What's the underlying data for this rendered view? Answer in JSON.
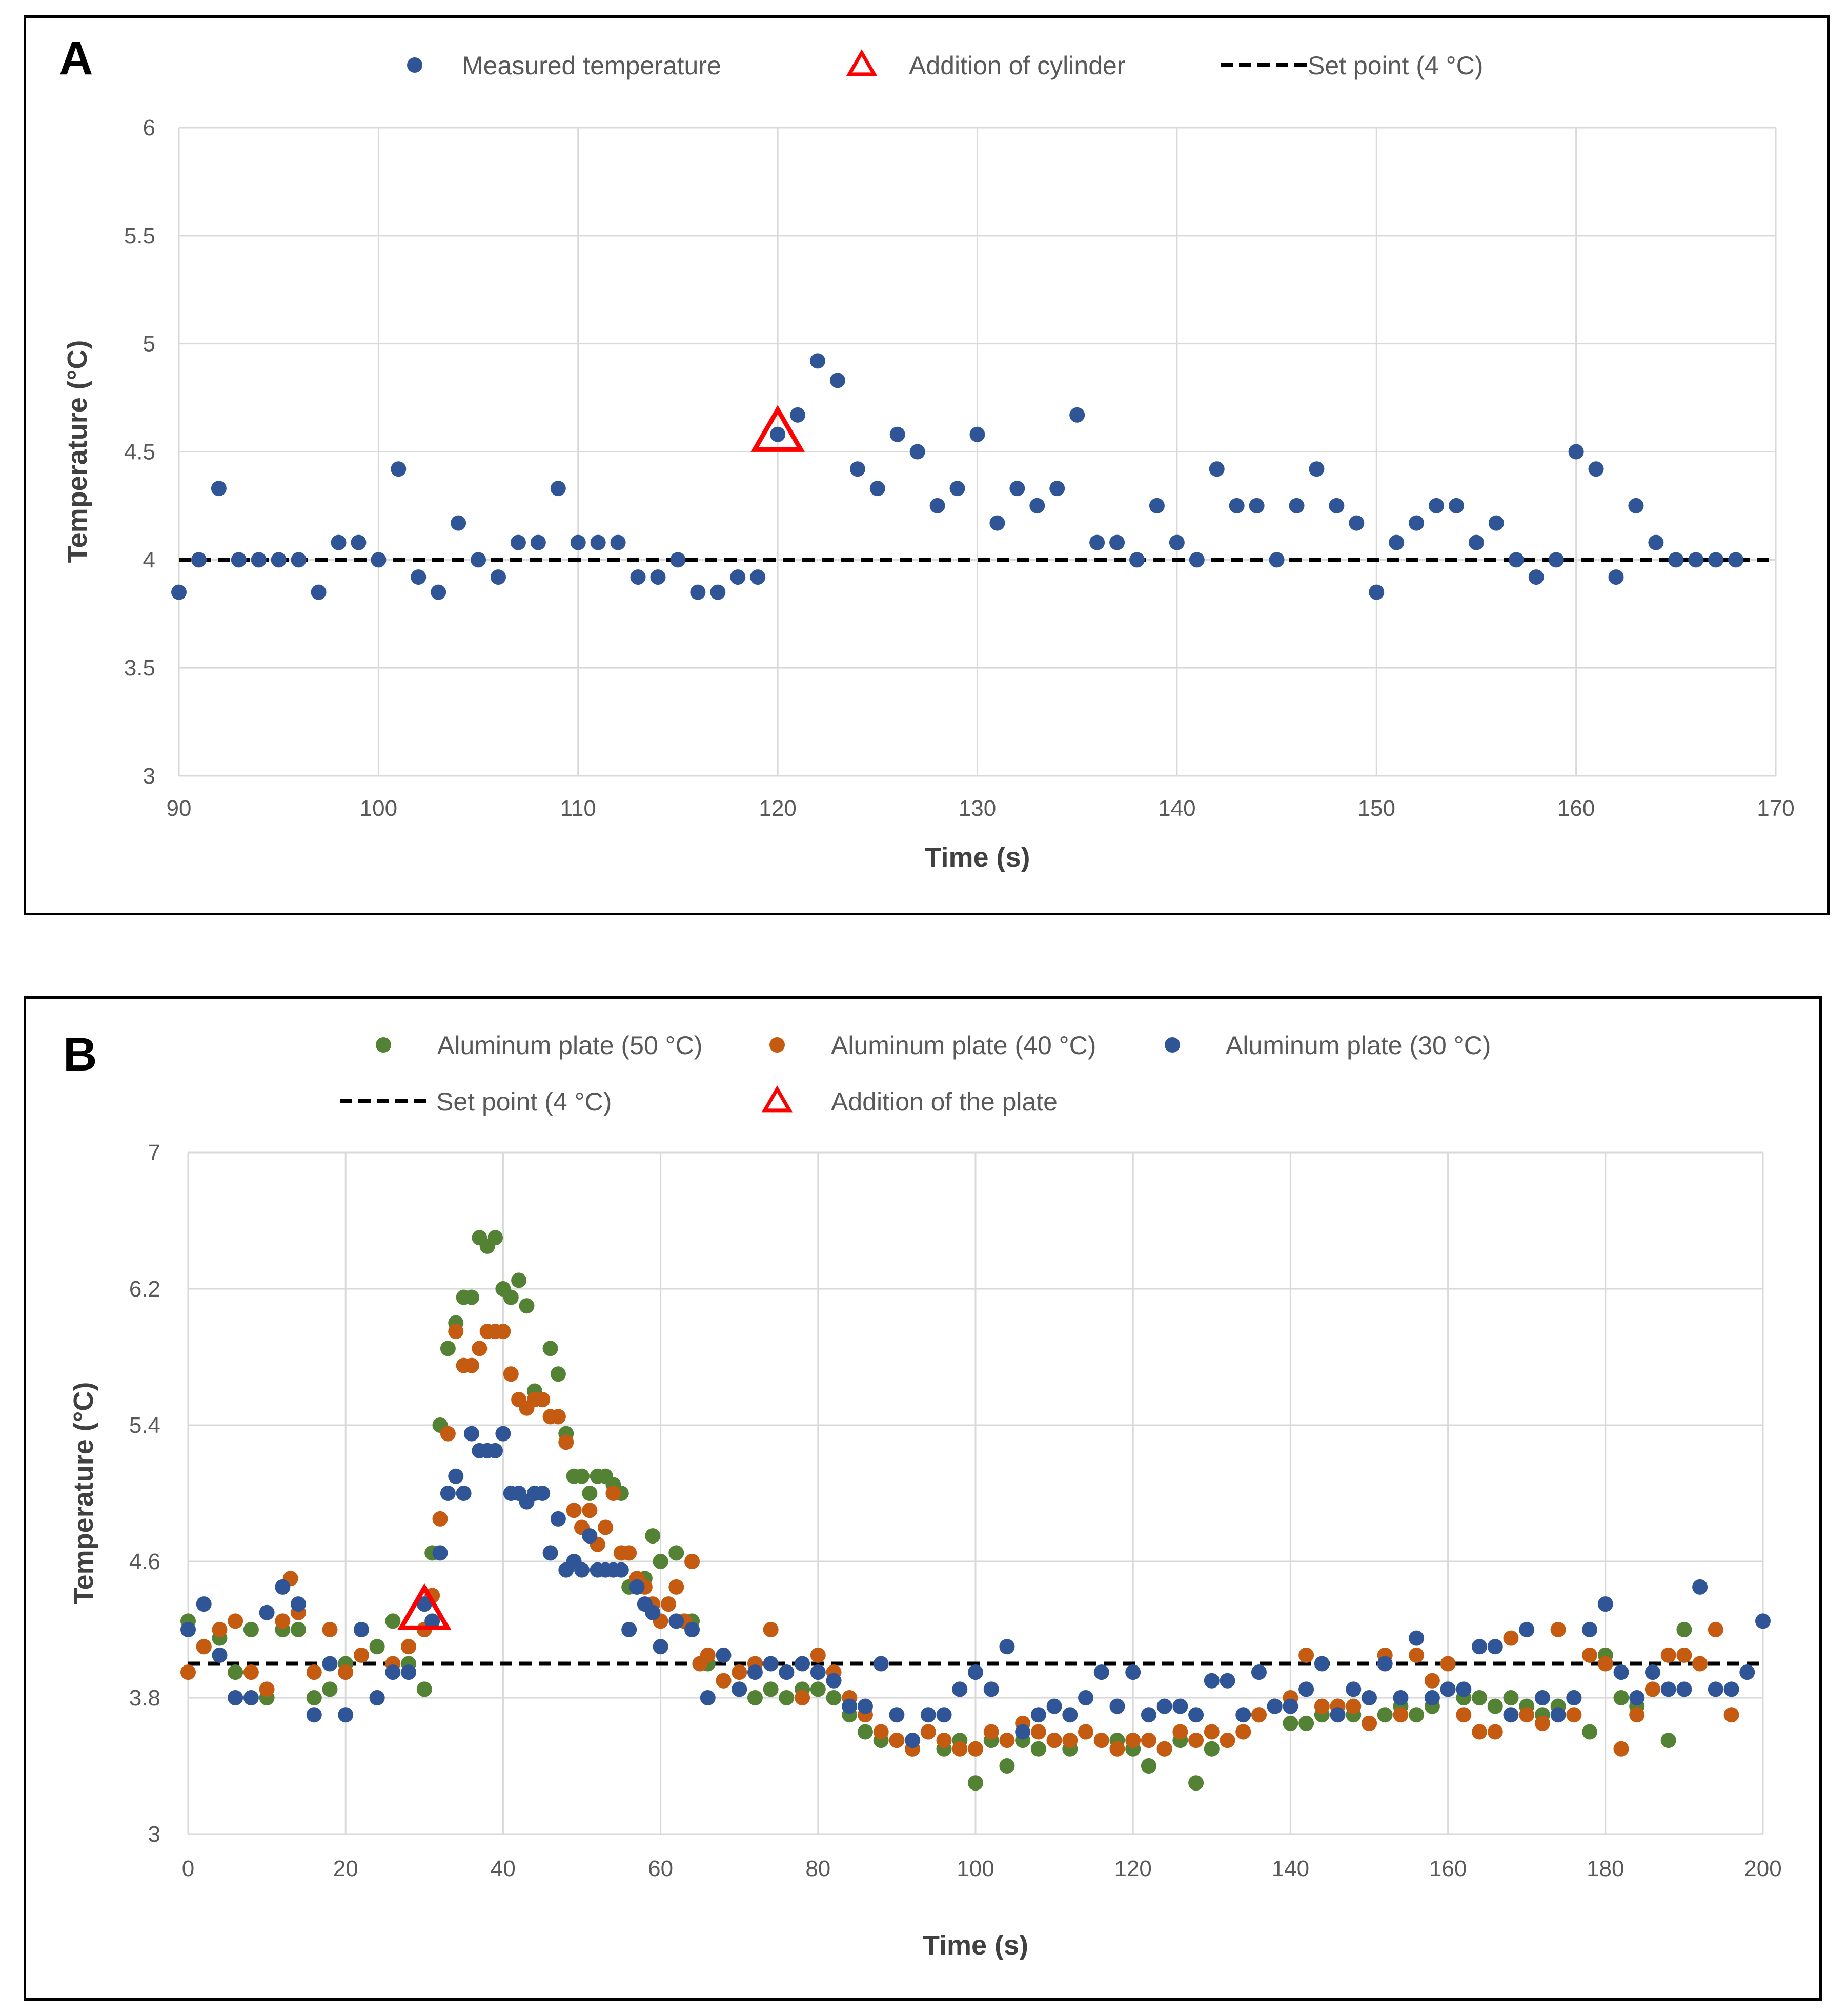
{
  "chart_data": [
    {
      "panel": "A",
      "type": "scatter",
      "xlabel": "Time (s)",
      "ylabel": "Temperature (°C)",
      "xlim": [
        90,
        170
      ],
      "ylim": [
        3,
        6
      ],
      "xticks": [
        "90",
        "100",
        "110",
        "120",
        "130",
        "140",
        "150",
        "160",
        "170"
      ],
      "yticks": [
        "3",
        "3.5",
        "4",
        "4.5",
        "5",
        "5.5",
        "6"
      ],
      "grid": true,
      "legend": [
        "Measured temperature",
        "Addition of cylinder",
        "Set point (4 °C)"
      ],
      "setpoint": 4,
      "marker": {
        "name": "Addition of cylinder",
        "x": 120,
        "y": 4.58
      },
      "series": [
        {
          "name": "Measured temperature",
          "color": "#2F5597",
          "x": [
            90,
            91,
            92,
            93,
            94,
            95,
            96,
            97,
            98,
            99,
            100,
            101,
            102,
            103,
            104,
            105,
            106,
            107,
            108,
            109,
            110,
            111,
            112,
            113,
            114,
            115,
            116,
            117,
            118,
            119,
            120,
            121,
            122,
            123,
            124,
            125,
            126,
            127,
            128,
            129,
            130,
            131,
            132,
            133,
            134,
            135,
            136,
            137,
            138,
            139,
            140,
            141,
            142,
            143,
            144,
            145,
            146,
            147,
            148,
            149,
            150,
            151,
            152,
            153,
            154,
            155,
            156,
            157,
            158,
            159,
            160,
            161,
            162,
            163,
            164,
            165,
            166,
            167,
            168
          ],
          "y": [
            3.85,
            4.0,
            4.33,
            4.0,
            4.0,
            4.0,
            4.0,
            3.85,
            4.08,
            4.08,
            4.0,
            4.42,
            3.92,
            3.85,
            4.17,
            4.0,
            3.92,
            4.08,
            4.08,
            4.33,
            4.08,
            4.08,
            4.08,
            3.92,
            3.92,
            4.0,
            3.85,
            3.85,
            3.92,
            3.92,
            4.58,
            4.67,
            4.92,
            4.83,
            4.42,
            4.33,
            4.58,
            4.5,
            4.25,
            4.33,
            4.58,
            4.17,
            4.33,
            4.25,
            4.33,
            4.67,
            4.08,
            4.08,
            4.0,
            4.25,
            4.08,
            4.0,
            4.42,
            4.25,
            4.25,
            4.0,
            4.25,
            4.42,
            4.25,
            4.17,
            3.85,
            4.08,
            4.17,
            4.25,
            4.25,
            4.08,
            4.17,
            4.0,
            3.92,
            4.0,
            4.5,
            4.42,
            3.92,
            4.25,
            4.08,
            4.0,
            4.0,
            4.0,
            4.0
          ]
        }
      ]
    },
    {
      "panel": "B",
      "type": "scatter",
      "xlabel": "Time (s)",
      "ylabel": "Temperature (°C)",
      "xlim": [
        0,
        200
      ],
      "ylim": [
        3,
        7
      ],
      "xticks": [
        "0",
        "20",
        "40",
        "60",
        "80",
        "100",
        "120",
        "140",
        "160",
        "180",
        "200"
      ],
      "yticks": [
        "3",
        "3.8",
        "4.6",
        "5.4",
        "6.2",
        "7"
      ],
      "grid": true,
      "legend": [
        "Aluminum plate (50 °C)",
        "Aluminum plate (40 °C)",
        "Aluminum plate (30 °C)",
        "Set point (4 °C)",
        "Addition of the plate"
      ],
      "setpoint": 4,
      "marker": {
        "name": "Addition of the plate",
        "x": 30,
        "y": 4.3
      },
      "series": [
        {
          "name": "Aluminum plate (50 °C)",
          "color": "#548235",
          "x": [
            0,
            2,
            4,
            6,
            8,
            10,
            12,
            14,
            16,
            18,
            20,
            22,
            24,
            26,
            28,
            30,
            31,
            32,
            33,
            34,
            35,
            36,
            37,
            38,
            39,
            40,
            41,
            42,
            43,
            44,
            45,
            46,
            47,
            48,
            49,
            50,
            51,
            52,
            53,
            54,
            55,
            56,
            57,
            58,
            59,
            60,
            62,
            64,
            66,
            68,
            70,
            72,
            74,
            76,
            78,
            80,
            82,
            84,
            86,
            88,
            90,
            92,
            94,
            96,
            98,
            100,
            102,
            104,
            106,
            108,
            110,
            112,
            114,
            116,
            118,
            120,
            122,
            124,
            126,
            128,
            130,
            132,
            134,
            136,
            138,
            140,
            142,
            144,
            146,
            148,
            150,
            152,
            154,
            156,
            158,
            160,
            162,
            164,
            166,
            168,
            170,
            172,
            174,
            176,
            178,
            180,
            182,
            184,
            186,
            188,
            190
          ],
          "y": [
            4.25,
            4.1,
            4.15,
            3.95,
            4.2,
            3.8,
            4.2,
            4.2,
            3.8,
            3.85,
            4.0,
            4.2,
            4.1,
            4.25,
            4.0,
            3.85,
            4.65,
            5.4,
            5.85,
            6.0,
            6.15,
            6.15,
            6.5,
            6.45,
            6.5,
            6.2,
            6.15,
            6.25,
            6.1,
            5.6,
            5.55,
            5.85,
            5.7,
            5.35,
            5.1,
            5.1,
            5.0,
            5.1,
            5.1,
            5.05,
            5.0,
            4.45,
            4.45,
            4.5,
            4.75,
            4.6,
            4.65,
            4.25,
            4.0,
            3.9,
            3.85,
            3.8,
            3.85,
            3.8,
            3.85,
            3.85,
            3.8,
            3.7,
            3.6,
            3.55,
            3.55,
            3.5,
            3.6,
            3.5,
            3.55,
            3.3,
            3.55,
            3.4,
            3.55,
            3.5,
            3.55,
            3.5,
            3.6,
            3.55,
            3.55,
            3.5,
            3.4,
            3.5,
            3.55,
            3.3,
            3.5,
            3.55,
            3.6,
            3.7,
            3.75,
            3.65,
            3.65,
            3.7,
            3.75,
            3.7,
            3.65,
            3.7,
            3.75,
            3.7,
            3.75,
            3.85,
            3.8,
            3.8,
            3.75,
            3.8,
            3.75,
            3.7,
            3.75,
            3.8,
            3.6,
            4.05,
            3.8,
            3.75,
            3.85,
            3.55,
            4.2
          ]
        },
        {
          "name": "Aluminum plate (40 °C)",
          "color": "#C55A11",
          "x": [
            0,
            2,
            4,
            6,
            8,
            10,
            12,
            13,
            14,
            16,
            18,
            20,
            22,
            24,
            26,
            28,
            30,
            31,
            32,
            33,
            34,
            35,
            36,
            37,
            38,
            39,
            40,
            41,
            42,
            43,
            44,
            45,
            46,
            47,
            48,
            49,
            50,
            51,
            52,
            53,
            54,
            55,
            56,
            57,
            58,
            59,
            60,
            61,
            62,
            63,
            64,
            65,
            66,
            68,
            70,
            72,
            74,
            76,
            78,
            80,
            82,
            84,
            86,
            88,
            90,
            92,
            94,
            96,
            98,
            100,
            102,
            104,
            106,
            108,
            110,
            112,
            114,
            116,
            118,
            120,
            122,
            124,
            126,
            128,
            130,
            132,
            134,
            136,
            138,
            140,
            142,
            144,
            146,
            148,
            150,
            152,
            154,
            156,
            158,
            160,
            162,
            164,
            166,
            168,
            170,
            172,
            174,
            176,
            178,
            180,
            182,
            184,
            186,
            188,
            190,
            192,
            194,
            196
          ],
          "y": [
            3.95,
            4.1,
            4.2,
            4.25,
            3.95,
            3.85,
            4.25,
            4.5,
            4.3,
            3.95,
            4.2,
            3.95,
            4.05,
            3.8,
            4.0,
            4.1,
            4.2,
            4.4,
            4.85,
            5.35,
            5.95,
            5.75,
            5.75,
            5.85,
            5.95,
            5.95,
            5.95,
            5.7,
            5.55,
            5.5,
            5.55,
            5.55,
            5.45,
            5.45,
            5.3,
            4.9,
            4.8,
            4.9,
            4.7,
            4.8,
            5.0,
            4.65,
            4.65,
            4.5,
            4.45,
            4.35,
            4.25,
            4.35,
            4.45,
            4.25,
            4.6,
            4.0,
            4.05,
            3.9,
            3.95,
            4.0,
            4.2,
            3.95,
            3.8,
            4.05,
            3.95,
            3.8,
            3.7,
            3.6,
            3.55,
            3.5,
            3.6,
            3.55,
            3.5,
            3.5,
            3.6,
            3.55,
            3.65,
            3.6,
            3.55,
            3.55,
            3.6,
            3.55,
            3.5,
            3.55,
            3.55,
            3.5,
            3.6,
            3.55,
            3.6,
            3.55,
            3.6,
            3.7,
            3.75,
            3.8,
            4.05,
            3.75,
            3.75,
            3.75,
            3.65,
            4.05,
            3.7,
            4.05,
            3.9,
            4.0,
            3.7,
            3.6,
            3.6,
            4.15,
            3.7,
            3.65,
            4.2,
            3.7,
            4.05,
            4.0,
            3.5,
            3.7,
            3.85,
            4.05,
            4.05,
            4.0,
            4.2,
            3.7
          ]
        },
        {
          "name": "Aluminum plate (30 °C)",
          "color": "#2F5597",
          "x": [
            0,
            2,
            4,
            6,
            8,
            10,
            12,
            14,
            16,
            18,
            20,
            22,
            24,
            26,
            28,
            30,
            31,
            32,
            33,
            34,
            35,
            36,
            37,
            38,
            39,
            40,
            41,
            42,
            43,
            44,
            45,
            46,
            47,
            48,
            49,
            50,
            51,
            52,
            53,
            54,
            55,
            56,
            57,
            58,
            59,
            60,
            62,
            64,
            66,
            68,
            70,
            72,
            74,
            76,
            78,
            80,
            82,
            84,
            86,
            88,
            90,
            92,
            94,
            96,
            98,
            100,
            102,
            104,
            106,
            108,
            110,
            112,
            114,
            116,
            118,
            120,
            122,
            124,
            126,
            128,
            130,
            132,
            134,
            136,
            138,
            140,
            142,
            144,
            146,
            148,
            150,
            152,
            154,
            156,
            158,
            160,
            162,
            164,
            166,
            168,
            170,
            172,
            174,
            176,
            178,
            180,
            182,
            184,
            186,
            188,
            190,
            192,
            194,
            196,
            198,
            200
          ],
          "y": [
            4.2,
            4.35,
            4.05,
            3.8,
            3.8,
            4.3,
            4.45,
            4.35,
            3.7,
            4.0,
            3.7,
            4.2,
            3.8,
            3.95,
            3.95,
            4.35,
            4.25,
            4.65,
            5.0,
            5.1,
            5.0,
            5.35,
            5.25,
            5.25,
            5.25,
            5.35,
            5.0,
            5.0,
            4.95,
            5.0,
            5.0,
            4.65,
            4.85,
            4.55,
            4.6,
            4.55,
            4.75,
            4.55,
            4.55,
            4.55,
            4.55,
            4.2,
            4.45,
            4.35,
            4.3,
            4.1,
            4.25,
            4.2,
            3.8,
            4.05,
            3.85,
            3.95,
            4.0,
            3.95,
            4.0,
            3.95,
            3.9,
            3.75,
            3.75,
            4.0,
            3.7,
            3.55,
            3.7,
            3.7,
            3.85,
            3.95,
            3.85,
            4.1,
            3.6,
            3.7,
            3.75,
            3.7,
            3.8,
            3.95,
            3.75,
            3.95,
            3.7,
            3.75,
            3.75,
            3.7,
            3.9,
            3.9,
            3.7,
            3.95,
            3.75,
            3.75,
            3.85,
            4.0,
            3.7,
            3.85,
            3.8,
            4.0,
            3.8,
            4.15,
            3.8,
            3.85,
            3.85,
            4.1,
            4.1,
            3.7,
            4.2,
            3.8,
            3.7,
            3.8,
            4.2,
            4.35,
            3.95,
            3.8,
            3.95,
            3.85,
            3.85,
            4.45,
            3.85,
            3.85,
            3.95,
            4.25
          ]
        }
      ]
    }
  ]
}
